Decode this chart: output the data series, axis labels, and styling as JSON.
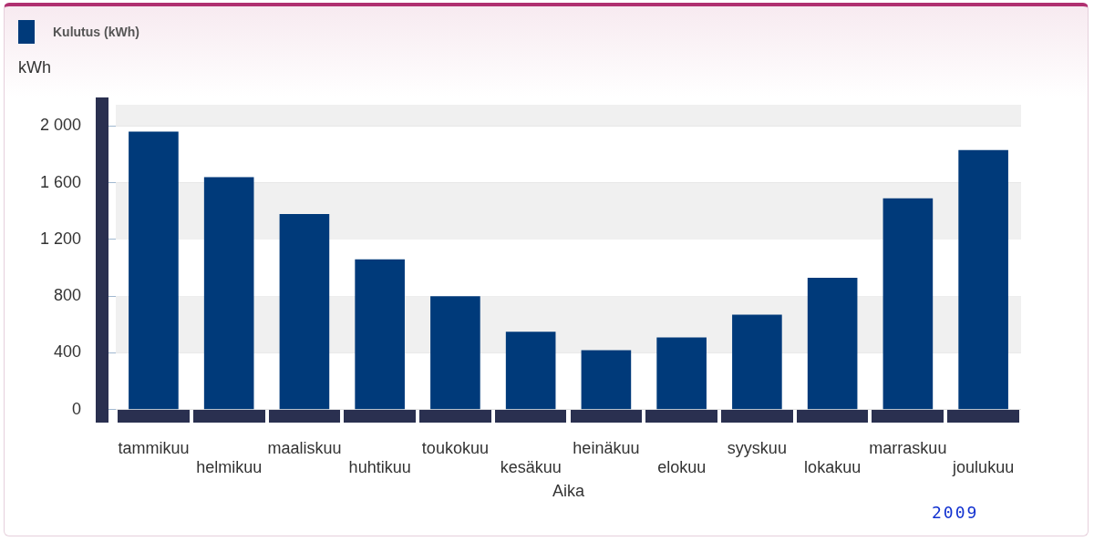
{
  "chart_data": {
    "type": "bar",
    "xlabel": "Aika",
    "ylabel": "kWh",
    "annotations": [
      "2009"
    ],
    "categories": [
      "tammikuu",
      "helmikuu",
      "maaliskuu",
      "huhtikuu",
      "toukokuu",
      "kesäkuu",
      "heinäkuu",
      "elokuu",
      "syyskuu",
      "lokakuu",
      "marraskuu",
      "joulukuu"
    ],
    "series": [
      {
        "name": "Kulutus (kWh)",
        "color": "#003a7a",
        "values": [
          1960,
          1640,
          1380,
          1060,
          800,
          550,
          420,
          510,
          670,
          930,
          1490,
          1830
        ]
      }
    ],
    "ylim": [
      0,
      2150
    ],
    "yticks": [
      {
        "value": 0,
        "label": "0"
      },
      {
        "value": 400,
        "label": "400"
      },
      {
        "value": 800,
        "label": "800"
      },
      {
        "value": 1200,
        "label": "1 200"
      },
      {
        "value": 1600,
        "label": "1 600"
      },
      {
        "value": 2000,
        "label": "2 000"
      }
    ],
    "grid": "y",
    "legend": "top left"
  }
}
